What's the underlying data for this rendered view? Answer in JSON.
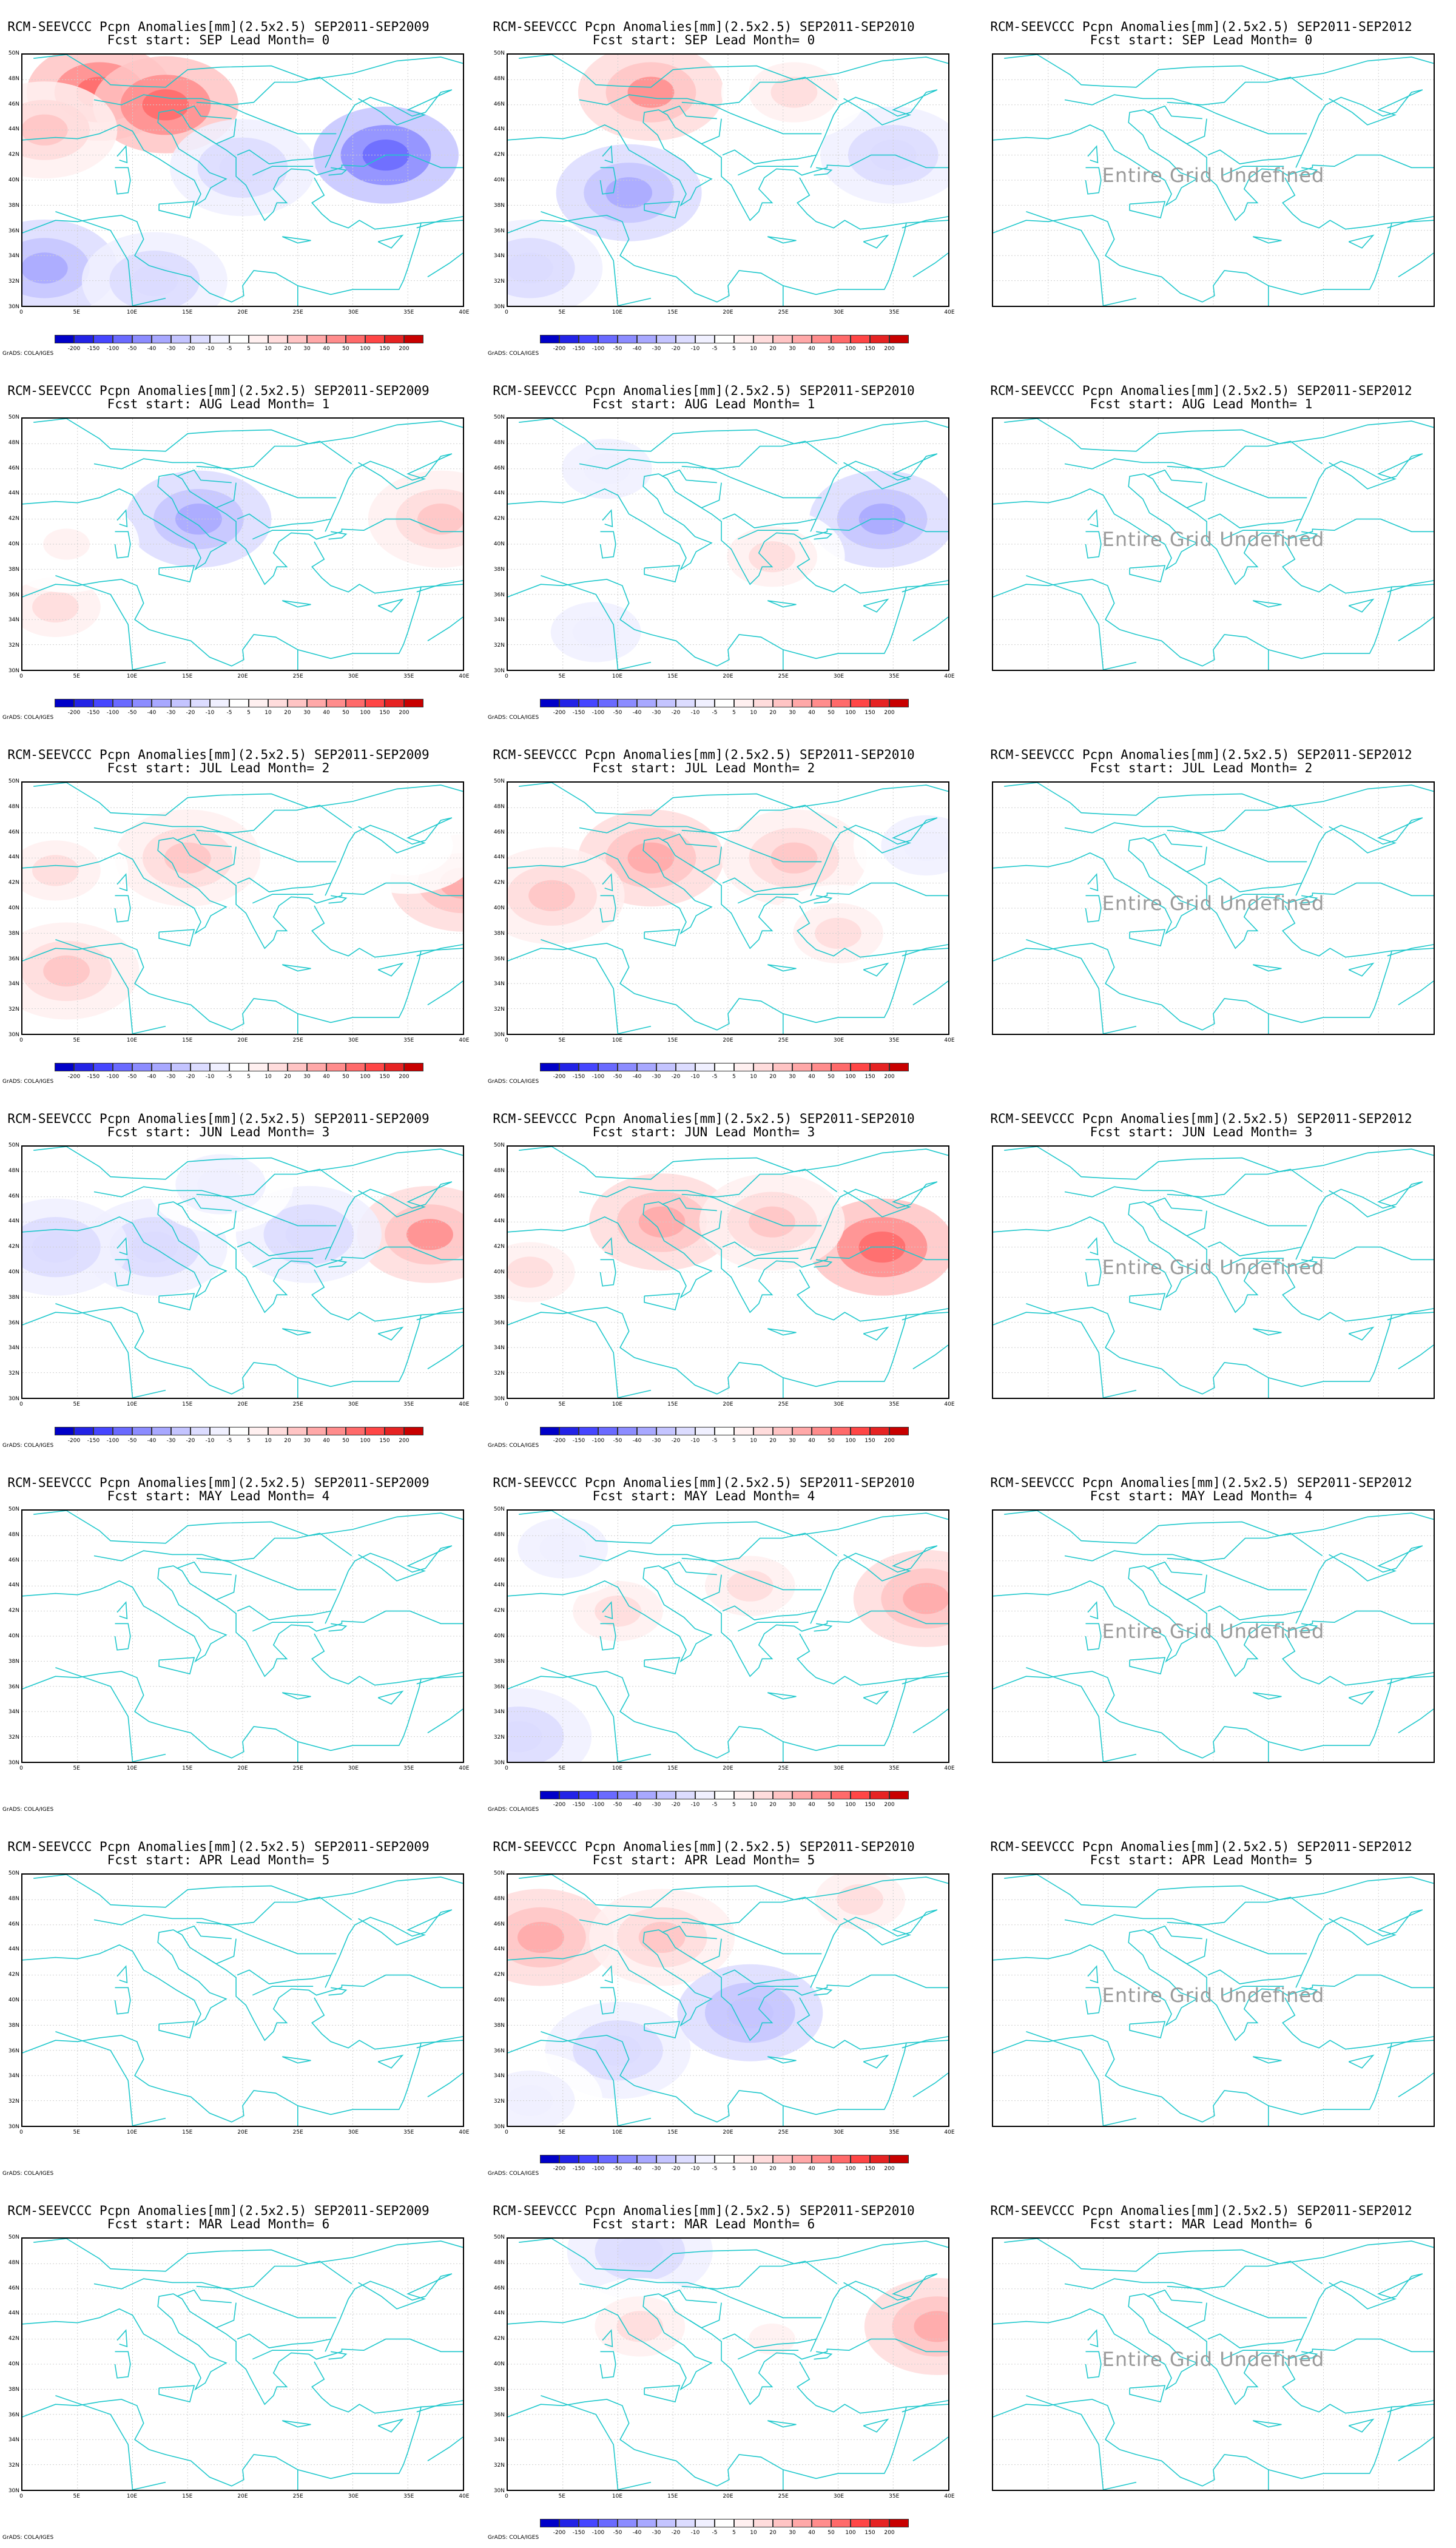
{
  "panel_titles": {
    "line1": [
      "RCM-SEEVCCC Pcpn Anomalies[mm](2.5x2.5) SEP2011-SEP2009",
      "RCM-SEEVCCC Pcpn Anomalies[mm](2.5x2.5) SEP2011-SEP2010",
      "RCM-SEEVCCC Pcpn Anomalies[mm](2.5x2.5) SEP2011-SEP2012"
    ],
    "line2": [
      "Fcst start: SEP  Lead Month= 0",
      "Fcst start: AUG  Lead Month= 1",
      "Fcst start: JUL  Lead Month= 2",
      "Fcst start: JUN  Lead Month= 3",
      "Fcst start: MAY  Lead Month= 4",
      "Fcst start: APR  Lead Month= 5",
      "Fcst start: MAR  Lead Month= 6"
    ]
  },
  "undefined_label": "Entire Grid Undefined",
  "credit": "GrADS: COLA/IGES",
  "axis": {
    "lat_labels": [
      "50N",
      "48N",
      "46N",
      "44N",
      "42N",
      "40N",
      "38N",
      "36N",
      "34N",
      "32N",
      "30N"
    ],
    "lon_labels": [
      "0",
      "5E",
      "10E",
      "15E",
      "20E",
      "25E",
      "30E",
      "35E",
      "40E"
    ]
  },
  "colorbar": {
    "tick_labels": [
      "-200",
      "-150",
      "-100",
      "-50",
      "-40",
      "-30",
      "-20",
      "-10",
      "-5",
      "5",
      "10",
      "20",
      "30",
      "40",
      "50",
      "100",
      "150",
      "200"
    ],
    "colors": [
      "#0000c8",
      "#2323e6",
      "#4646ff",
      "#6a6aff",
      "#8c8cff",
      "#a8a8ff",
      "#c4c4ff",
      "#dcdcff",
      "#f0f0ff",
      "#ffffff",
      "#fff0f0",
      "#ffdcdc",
      "#ffc4c4",
      "#ffa8a8",
      "#ff8c8c",
      "#ff6a6a",
      "#ff4646",
      "#e62323",
      "#c80000"
    ]
  },
  "panels_with_colorbar": [
    [
      true,
      true,
      false
    ],
    [
      true,
      true,
      false
    ],
    [
      true,
      true,
      false
    ],
    [
      true,
      true,
      false
    ],
    [
      false,
      true,
      false
    ],
    [
      false,
      true,
      false
    ],
    [
      false,
      true,
      false
    ]
  ],
  "anomaly_blobs": [
    [
      [
        {
          "lon": 7,
          "lat": 47,
          "value": 60
        },
        {
          "lon": 13,
          "lat": 46,
          "value": 60
        },
        {
          "lon": 2,
          "lat": 44,
          "value": 20
        },
        {
          "lon": 33,
          "lat": 42,
          "value": -60
        },
        {
          "lon": 20,
          "lat": 41,
          "value": -20
        },
        {
          "lon": 2,
          "lat": 33,
          "value": -40
        },
        {
          "lon": 12,
          "lat": 32,
          "value": -20
        }
      ],
      [
        {
          "lon": 13,
          "lat": 47,
          "value": 40
        },
        {
          "lon": 11,
          "lat": 39,
          "value": -40
        },
        {
          "lon": 2,
          "lat": 33,
          "value": -20
        },
        {
          "lon": 35,
          "lat": 42,
          "value": -20
        },
        {
          "lon": 26,
          "lat": 47,
          "value": 10
        }
      ],
      []
    ],
    [
      [
        {
          "lon": 16,
          "lat": 42,
          "value": -40
        },
        {
          "lon": 38,
          "lat": 42,
          "value": 20
        },
        {
          "lon": 3,
          "lat": 35,
          "value": 10
        },
        {
          "lon": 4,
          "lat": 40,
          "value": 5
        }
      ],
      [
        {
          "lon": 34,
          "lat": 42,
          "value": -40
        },
        {
          "lon": 9,
          "lat": 46,
          "value": -10
        },
        {
          "lon": 24,
          "lat": 39,
          "value": 10
        },
        {
          "lon": 8,
          "lat": 33,
          "value": -10
        }
      ],
      []
    ],
    [
      [
        {
          "lon": 15,
          "lat": 44,
          "value": 20
        },
        {
          "lon": 40,
          "lat": 42,
          "value": 30
        },
        {
          "lon": 4,
          "lat": 35,
          "value": 20
        },
        {
          "lon": 3,
          "lat": 43,
          "value": 10
        },
        {
          "lon": 35,
          "lat": 45,
          "value": -5
        }
      ],
      [
        {
          "lon": 13,
          "lat": 44,
          "value": 30
        },
        {
          "lon": 26,
          "lat": 44,
          "value": 20
        },
        {
          "lon": 4,
          "lat": 41,
          "value": 20
        },
        {
          "lon": 30,
          "lat": 38,
          "value": 10
        },
        {
          "lon": 38,
          "lat": 45,
          "value": -10
        }
      ],
      []
    ],
    [
      [
        {
          "lon": 12,
          "lat": 42,
          "value": -20
        },
        {
          "lon": 3,
          "lat": 42,
          "value": -20
        },
        {
          "lon": 37,
          "lat": 43,
          "value": 40
        },
        {
          "lon": 26,
          "lat": 43,
          "value": -20
        },
        {
          "lon": 18,
          "lat": 47,
          "value": -10
        }
      ],
      [
        {
          "lon": 14,
          "lat": 44,
          "value": 30
        },
        {
          "lon": 34,
          "lat": 42,
          "value": 60
        },
        {
          "lon": 24,
          "lat": 44,
          "value": 20
        },
        {
          "lon": 2,
          "lat": 40,
          "value": 10
        }
      ],
      []
    ],
    [
      [],
      [
        {
          "lon": 38,
          "lat": 43,
          "value": 30
        },
        {
          "lon": 10,
          "lat": 42,
          "value": 10
        },
        {
          "lon": 22,
          "lat": 44,
          "value": 10
        },
        {
          "lon": 1,
          "lat": 32,
          "value": -20
        },
        {
          "lon": 5,
          "lat": 47,
          "value": -10
        }
      ],
      []
    ],
    [
      [],
      [
        {
          "lon": 3,
          "lat": 45,
          "value": 30
        },
        {
          "lon": 14,
          "lat": 45,
          "value": 20
        },
        {
          "lon": 10,
          "lat": 36,
          "value": -20
        },
        {
          "lon": 22,
          "lat": 39,
          "value": -30
        },
        {
          "lon": 32,
          "lat": 48,
          "value": 10
        },
        {
          "lon": 2,
          "lat": 32,
          "value": -10
        }
      ],
      []
    ],
    [
      [],
      [
        {
          "lon": 39,
          "lat": 43,
          "value": 30
        },
        {
          "lon": 12,
          "lat": 49,
          "value": -20
        },
        {
          "lon": 12,
          "lat": 43,
          "value": 10
        },
        {
          "lon": 24,
          "lat": 42,
          "value": 5
        }
      ],
      []
    ]
  ]
}
